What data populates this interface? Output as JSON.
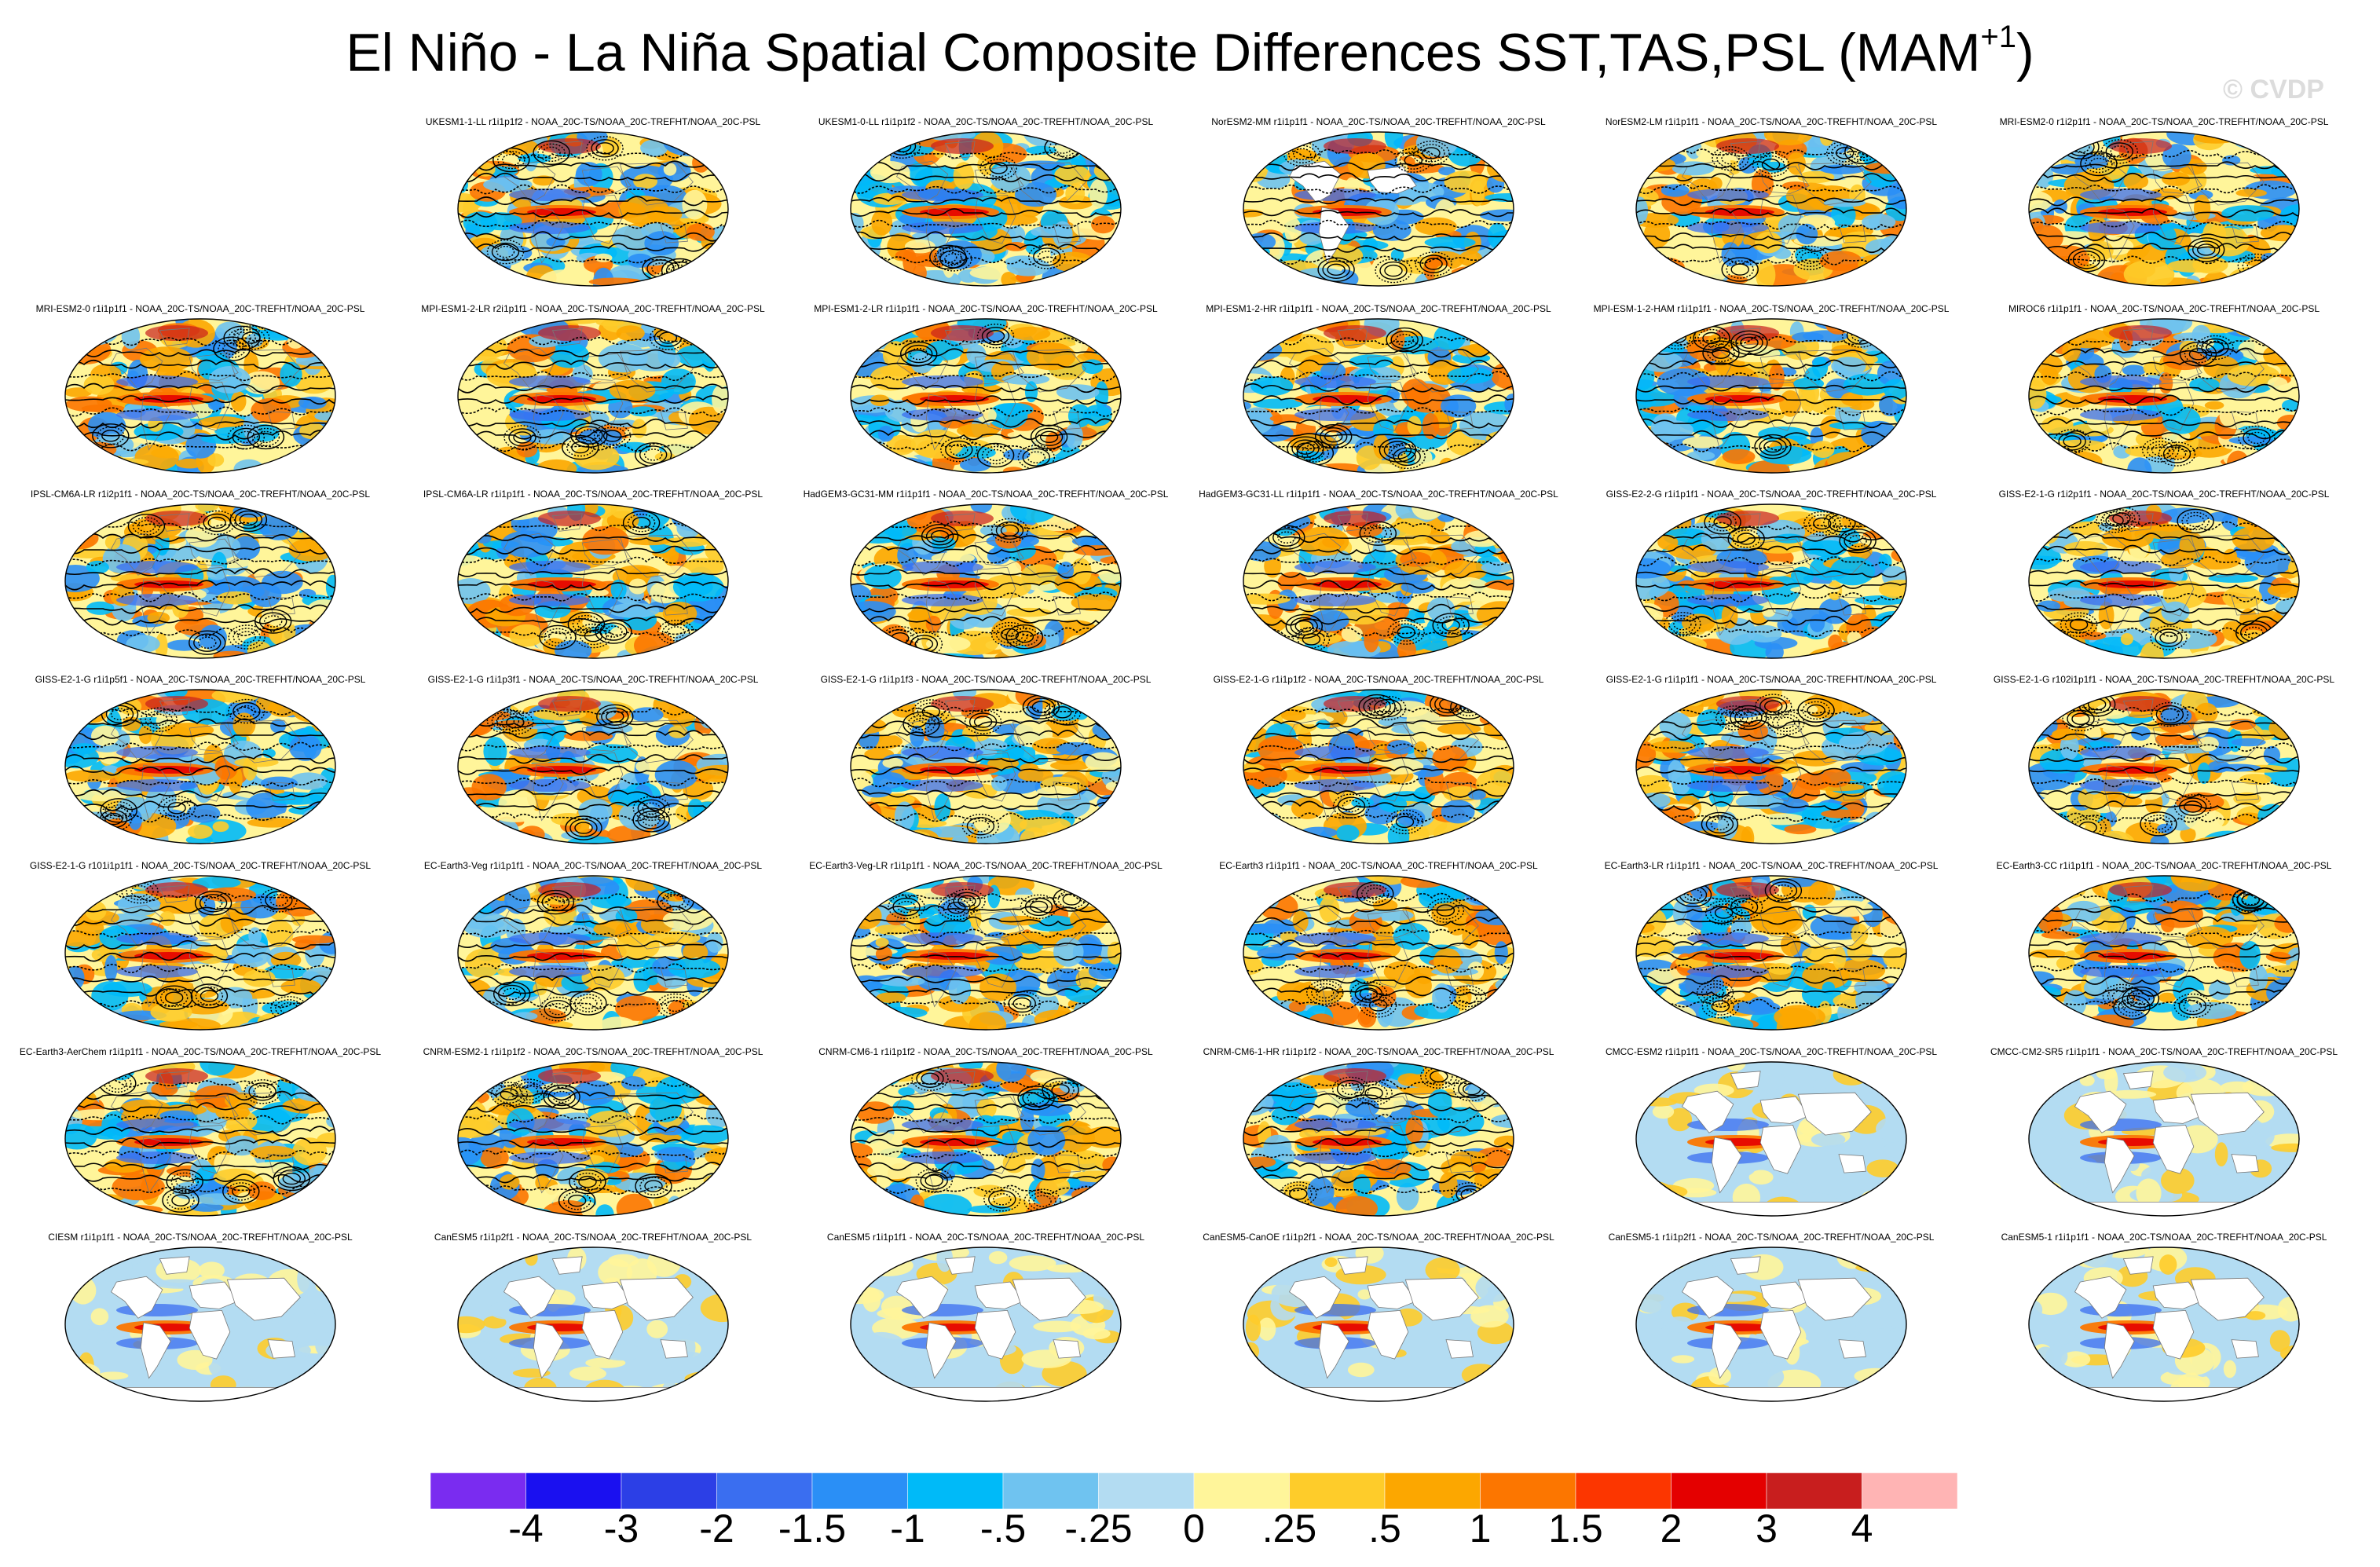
{
  "title": {
    "main": "El Niño - La Niña Spatial Composite Differences SST,TAS,PSL (MAM",
    "superscript": "+1",
    "close": ")"
  },
  "watermark": "© CVDP",
  "map_style": {
    "land_fill": "#ffffff",
    "outline": "#000000",
    "coast": "#777777",
    "contour": "#000000"
  },
  "colorbar": {
    "colors": [
      "#7a2cf0",
      "#1a10f0",
      "#2c3fe6",
      "#3a6ef0",
      "#2a8ff6",
      "#00baf8",
      "#6fc3f0",
      "#b3dcf2",
      "#fff59a",
      "#fecc2a",
      "#fca700",
      "#fc7600",
      "#fc3600",
      "#e40000",
      "#c81e1e",
      "#ffb4b4"
    ],
    "labels": [
      "-4",
      "-3",
      "-2",
      "-1.5",
      "-1",
      "-.5",
      "-.25",
      "0",
      ".25",
      ".5",
      "1",
      "1.5",
      "2",
      "3",
      "4"
    ]
  },
  "panels": [
    {
      "title": "UKESM1-1-LL r1i1p1f2 - NOAA_20C-TS/NOAA_20C-TREFHT/NOAA_20C-PSL",
      "mode": "full"
    },
    {
      "title": "UKESM1-0-LL r1i1p1f2 - NOAA_20C-TS/NOAA_20C-TREFHT/NOAA_20C-PSL",
      "mode": "full"
    },
    {
      "title": "NorESM2-MM r1i1p1f1 - NOAA_20C-TS/NOAA_20C-TREFHT/NOAA_20C-PSL",
      "mode": "partial"
    },
    {
      "title": "NorESM2-LM r1i1p1f1 - NOAA_20C-TS/NOAA_20C-TREFHT/NOAA_20C-PSL",
      "mode": "full"
    },
    {
      "title": "MRI-ESM2-0 r1i2p1f1 - NOAA_20C-TS/NOAA_20C-TREFHT/NOAA_20C-PSL",
      "mode": "full"
    },
    {
      "title": "MRI-ESM2-0 r1i1p1f1 - NOAA_20C-TS/NOAA_20C-TREFHT/NOAA_20C-PSL",
      "mode": "full"
    },
    {
      "title": "MPI-ESM1-2-LR r2i1p1f1 - NOAA_20C-TS/NOAA_20C-TREFHT/NOAA_20C-PSL",
      "mode": "full"
    },
    {
      "title": "MPI-ESM1-2-LR r1i1p1f1 - NOAA_20C-TS/NOAA_20C-TREFHT/NOAA_20C-PSL",
      "mode": "full"
    },
    {
      "title": "MPI-ESM1-2-HR r1i1p1f1 - NOAA_20C-TS/NOAA_20C-TREFHT/NOAA_20C-PSL",
      "mode": "full"
    },
    {
      "title": "MPI-ESM-1-2-HAM r1i1p1f1 - NOAA_20C-TS/NOAA_20C-TREFHT/NOAA_20C-PSL",
      "mode": "full"
    },
    {
      "title": "MIROC6 r1i1p1f1 - NOAA_20C-TS/NOAA_20C-TREFHT/NOAA_20C-PSL",
      "mode": "full"
    },
    {
      "title": "IPSL-CM6A-LR r1i2p1f1 - NOAA_20C-TS/NOAA_20C-TREFHT/NOAA_20C-PSL",
      "mode": "full"
    },
    {
      "title": "IPSL-CM6A-LR r1i1p1f1 - NOAA_20C-TS/NOAA_20C-TREFHT/NOAA_20C-PSL",
      "mode": "full"
    },
    {
      "title": "HadGEM3-GC31-MM r1i1p1f1 - NOAA_20C-TS/NOAA_20C-TREFHT/NOAA_20C-PSL",
      "mode": "full"
    },
    {
      "title": "HadGEM3-GC31-LL r1i1p1f1 - NOAA_20C-TS/NOAA_20C-TREFHT/NOAA_20C-PSL",
      "mode": "full"
    },
    {
      "title": "GISS-E2-2-G r1i1p1f1 - NOAA_20C-TS/NOAA_20C-TREFHT/NOAA_20C-PSL",
      "mode": "full"
    },
    {
      "title": "GISS-E2-1-G r1i2p1f1 - NOAA_20C-TS/NOAA_20C-TREFHT/NOAA_20C-PSL",
      "mode": "full"
    },
    {
      "title": "GISS-E2-1-G r1i1p5f1 - NOAA_20C-TS/NOAA_20C-TREFHT/NOAA_20C-PSL",
      "mode": "full"
    },
    {
      "title": "GISS-E2-1-G r1i1p3f1 - NOAA_20C-TS/NOAA_20C-TREFHT/NOAA_20C-PSL",
      "mode": "full"
    },
    {
      "title": "GISS-E2-1-G r1i1p1f3 - NOAA_20C-TS/NOAA_20C-TREFHT/NOAA_20C-PSL",
      "mode": "full"
    },
    {
      "title": "GISS-E2-1-G r1i1p1f2 - NOAA_20C-TS/NOAA_20C-TREFHT/NOAA_20C-PSL",
      "mode": "full"
    },
    {
      "title": "GISS-E2-1-G r1i1p1f1 - NOAA_20C-TS/NOAA_20C-TREFHT/NOAA_20C-PSL",
      "mode": "full"
    },
    {
      "title": "GISS-E2-1-G r102i1p1f1 - NOAA_20C-TS/NOAA_20C-TREFHT/NOAA_20C-PSL",
      "mode": "full"
    },
    {
      "title": "GISS-E2-1-G r101i1p1f1 - NOAA_20C-TS/NOAA_20C-TREFHT/NOAA_20C-PSL",
      "mode": "full"
    },
    {
      "title": "EC-Earth3-Veg r1i1p1f1 - NOAA_20C-TS/NOAA_20C-TREFHT/NOAA_20C-PSL",
      "mode": "full"
    },
    {
      "title": "EC-Earth3-Veg-LR r1i1p1f1 - NOAA_20C-TS/NOAA_20C-TREFHT/NOAA_20C-PSL",
      "mode": "full"
    },
    {
      "title": "EC-Earth3 r1i1p1f1 - NOAA_20C-TS/NOAA_20C-TREFHT/NOAA_20C-PSL",
      "mode": "full"
    },
    {
      "title": "EC-Earth3-LR r1i1p1f1 - NOAA_20C-TS/NOAA_20C-TREFHT/NOAA_20C-PSL",
      "mode": "full"
    },
    {
      "title": "EC-Earth3-CC r1i1p1f1 - NOAA_20C-TS/NOAA_20C-TREFHT/NOAA_20C-PSL",
      "mode": "full"
    },
    {
      "title": "EC-Earth3-AerChem r1i1p1f1 - NOAA_20C-TS/NOAA_20C-TREFHT/NOAA_20C-PSL",
      "mode": "full"
    },
    {
      "title": "CNRM-ESM2-1 r1i1p1f2 - NOAA_20C-TS/NOAA_20C-TREFHT/NOAA_20C-PSL",
      "mode": "full"
    },
    {
      "title": "CNRM-CM6-1 r1i1p1f2 - NOAA_20C-TS/NOAA_20C-TREFHT/NOAA_20C-PSL",
      "mode": "full"
    },
    {
      "title": "CNRM-CM6-1-HR r1i1p1f2 - NOAA_20C-TS/NOAA_20C-TREFHT/NOAA_20C-PSL",
      "mode": "full"
    },
    {
      "title": "CMCC-ESM2 r1i1p1f1 - NOAA_20C-TS/NOAA_20C-TREFHT/NOAA_20C-PSL",
      "mode": "sst"
    },
    {
      "title": "CMCC-CM2-SR5 r1i1p1f1 - NOAA_20C-TS/NOAA_20C-TREFHT/NOAA_20C-PSL",
      "mode": "sst"
    },
    {
      "title": "CIESM r1i1p1f1 - NOAA_20C-TS/NOAA_20C-TREFHT/NOAA_20C-PSL",
      "mode": "sst"
    },
    {
      "title": "CanESM5 r1i1p2f1 - NOAA_20C-TS/NOAA_20C-TREFHT/NOAA_20C-PSL",
      "mode": "sst"
    },
    {
      "title": "CanESM5 r1i1p1f1 - NOAA_20C-TS/NOAA_20C-TREFHT/NOAA_20C-PSL",
      "mode": "sst"
    },
    {
      "title": "CanESM5-CanOE r1i1p2f1 - NOAA_20C-TS/NOAA_20C-TREFHT/NOAA_20C-PSL",
      "mode": "sst"
    },
    {
      "title": "CanESM5-1 r1i1p2f1 - NOAA_20C-TS/NOAA_20C-TREFHT/NOAA_20C-PSL",
      "mode": "sst"
    },
    {
      "title": "CanESM5-1 r1i1p1f1 - NOAA_20C-TS/NOAA_20C-TREFHT/NOAA_20C-PSL",
      "mode": "sst"
    }
  ]
}
